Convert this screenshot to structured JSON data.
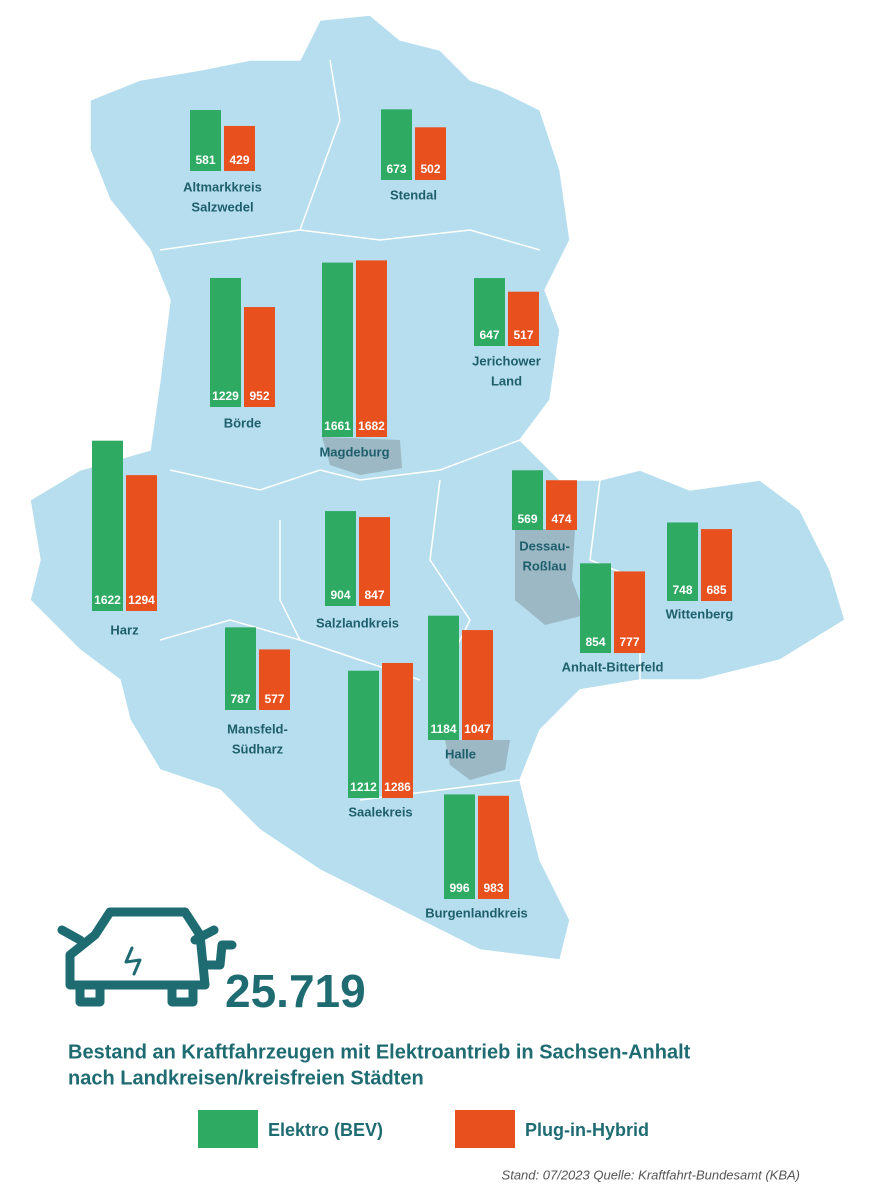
{
  "total": "25.719",
  "title_lines": [
    "Bestand an Kraftfahrzeugen mit Elektroantrieb in Sachsen-Anhalt",
    "nach Landkreisen/kreisfreien Städten"
  ],
  "legend": [
    {
      "name": "Elektro (BEV)",
      "color": "#2eaa63"
    },
    {
      "name": "Plug-in-Hybrid",
      "color": "#e8501e"
    }
  ],
  "source": "Stand: 07/2023  Quelle: Kraftfahrt-Bundesamt (KBA)",
  "regions": [
    {
      "name_lines": [
        "Altmarkkreis",
        "Salzwedel"
      ],
      "values": [
        581,
        429
      ]
    },
    {
      "name_lines": [
        "Stendal"
      ],
      "values": [
        673,
        502
      ]
    },
    {
      "name_lines": [
        "Börde"
      ],
      "values": [
        1229,
        952
      ]
    },
    {
      "name_lines": [
        "Magdeburg"
      ],
      "values": [
        1661,
        1682
      ]
    },
    {
      "name_lines": [
        "Jerichower",
        "Land"
      ],
      "values": [
        647,
        517
      ]
    },
    {
      "name_lines": [
        "Harz"
      ],
      "values": [
        1622,
        1294
      ]
    },
    {
      "name_lines": [
        "Dessau-",
        "Roßlau"
      ],
      "values": [
        569,
        474
      ]
    },
    {
      "name_lines": [
        "Wittenberg"
      ],
      "values": [
        748,
        685
      ]
    },
    {
      "name_lines": [
        "Salzlandkreis"
      ],
      "values": [
        904,
        847
      ]
    },
    {
      "name_lines": [
        "Anhalt-Bitterfeld"
      ],
      "values": [
        854,
        777
      ]
    },
    {
      "name_lines": [
        "Mansfeld-",
        "Südharz"
      ],
      "values": [
        787,
        577
      ]
    },
    {
      "name_lines": [
        "Halle"
      ],
      "values": [
        1184,
        1047
      ]
    },
    {
      "name_lines": [
        "Saalekreis"
      ],
      "values": [
        1212,
        1286
      ]
    },
    {
      "name_lines": [
        "Burgenlandkreis"
      ],
      "values": [
        996,
        983
      ]
    }
  ]
}
